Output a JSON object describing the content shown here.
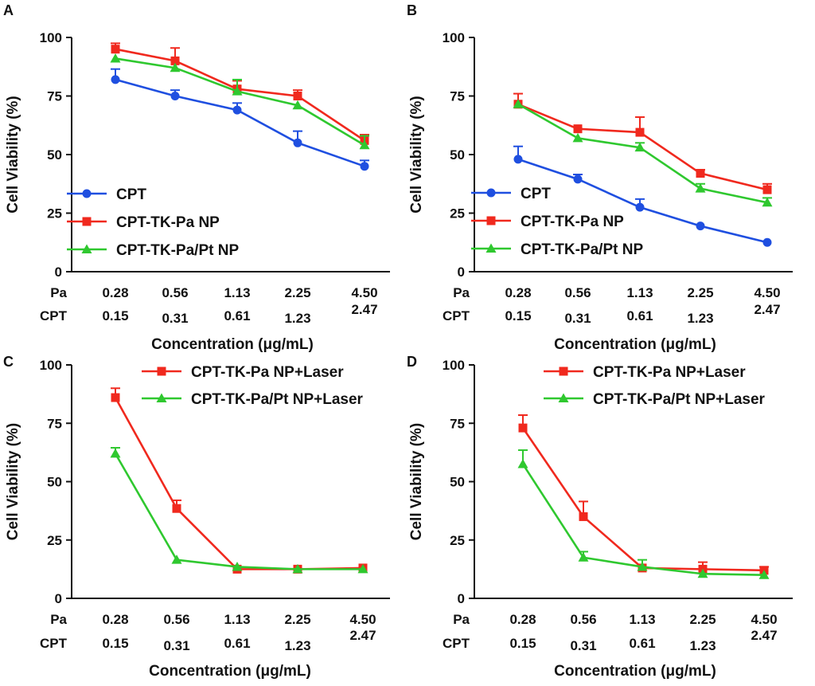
{
  "figure": {
    "colors": {
      "CPT": "#1f4fe0",
      "CPT-TK-Pa NP": "#f0291e",
      "CPT-TK-Pa/Pt NP": "#2fc82f",
      "CPT-TK-Pa NP+Laser": "#f0291e",
      "CPT-TK-Pa/Pt NP+Laser": "#2fc82f",
      "axis": "#111111"
    }
  },
  "chart_data": [
    {
      "panel": "A",
      "type": "line",
      "ylabel": "Cell Viability (%)",
      "xlabel": "Concentration (μg/mL)",
      "ylim": [
        0,
        100
      ],
      "yticks": [
        "0",
        "25",
        "50",
        "75",
        "100"
      ],
      "row_labels": [
        "Pa",
        "CPT"
      ],
      "pa": [
        "0.28",
        "0.56",
        "1.13",
        "2.25",
        "4.50"
      ],
      "cpt": [
        "0.15",
        "0.31",
        "0.61",
        "1.23",
        "2.47"
      ],
      "legend": "bottom-left",
      "series": [
        {
          "name": "CPT",
          "marker": "circle",
          "values": [
            82,
            75,
            69,
            55,
            45
          ],
          "errors": [
            4.5,
            2.5,
            3,
            5,
            2.5
          ]
        },
        {
          "name": "CPT-TK-Pa NP",
          "marker": "square",
          "values": [
            95,
            90,
            78,
            75,
            56
          ],
          "errors": [
            2.5,
            5.5,
            3.5,
            2.5,
            2.5
          ]
        },
        {
          "name": "CPT-TK-Pa/Pt NP",
          "marker": "triangle",
          "values": [
            91,
            87,
            77,
            71,
            54
          ],
          "errors": [
            0,
            0,
            5,
            0,
            4
          ]
        }
      ]
    },
    {
      "panel": "B",
      "type": "line",
      "ylabel": "Cell Viability (%)",
      "xlabel": "Concentration (μg/mL)",
      "ylim": [
        0,
        100
      ],
      "yticks": [
        "0",
        "25",
        "50",
        "75",
        "100"
      ],
      "row_labels": [
        "Pa",
        "CPT"
      ],
      "pa": [
        "0.28",
        "0.56",
        "1.13",
        "2.25",
        "4.50"
      ],
      "cpt": [
        "0.15",
        "0.31",
        "0.61",
        "1.23",
        "2.47"
      ],
      "legend": "bottom-left",
      "series": [
        {
          "name": "CPT",
          "marker": "circle",
          "values": [
            48,
            39.5,
            27.5,
            19.5,
            12.5
          ],
          "errors": [
            5.5,
            2,
            3.5,
            0,
            0
          ]
        },
        {
          "name": "CPT-TK-Pa NP",
          "marker": "square",
          "values": [
            71.5,
            61,
            59.5,
            42,
            35
          ],
          "errors": [
            4.5,
            0,
            6.5,
            1.5,
            2.5
          ]
        },
        {
          "name": "CPT-TK-Pa/Pt NP",
          "marker": "triangle",
          "values": [
            71.5,
            57,
            53,
            35.5,
            29.5
          ],
          "errors": [
            0,
            0,
            2,
            2,
            2
          ]
        }
      ]
    },
    {
      "panel": "C",
      "type": "line",
      "ylabel": "Cell Viability (%)",
      "xlabel": "Concentration (μg/mL)",
      "ylim": [
        0,
        100
      ],
      "yticks": [
        "0",
        "25",
        "50",
        "75",
        "100"
      ],
      "row_labels": [
        "Pa",
        "CPT"
      ],
      "pa": [
        "0.28",
        "0.56",
        "1.13",
        "2.25",
        "4.50"
      ],
      "cpt": [
        "0.15",
        "0.31",
        "0.61",
        "1.23",
        "2.47"
      ],
      "legend": "top-right",
      "series": [
        {
          "name": "CPT-TK-Pa NP+Laser",
          "marker": "square",
          "values": [
            86,
            38.5,
            12.5,
            12.5,
            13
          ],
          "errors": [
            4,
            3.5,
            0,
            0,
            0
          ]
        },
        {
          "name": "CPT-TK-Pa/Pt NP+Laser",
          "marker": "triangle",
          "values": [
            62,
            16.5,
            13.5,
            12.5,
            12.5
          ],
          "errors": [
            2.5,
            0,
            0,
            0,
            0
          ]
        }
      ]
    },
    {
      "panel": "D",
      "type": "line",
      "ylabel": "Cell Viability (%)",
      "xlabel": "Concentration (μg/mL)",
      "ylim": [
        0,
        100
      ],
      "yticks": [
        "0",
        "25",
        "50",
        "75",
        "100"
      ],
      "row_labels": [
        "Pa",
        "CPT"
      ],
      "pa": [
        "0.28",
        "0.56",
        "1.13",
        "2.25",
        "4.50"
      ],
      "cpt": [
        "0.15",
        "0.31",
        "0.61",
        "1.23",
        "2.47"
      ],
      "legend": "top-right",
      "series": [
        {
          "name": "CPT-TK-Pa NP+Laser",
          "marker": "square",
          "values": [
            73,
            35,
            13,
            12.5,
            12
          ],
          "errors": [
            5.5,
            6.5,
            0,
            3,
            1.5
          ]
        },
        {
          "name": "CPT-TK-Pa/Pt NP+Laser",
          "marker": "triangle",
          "values": [
            57.5,
            17.5,
            13.5,
            10.5,
            10
          ],
          "errors": [
            6,
            2.5,
            3,
            0,
            0
          ]
        }
      ]
    }
  ]
}
